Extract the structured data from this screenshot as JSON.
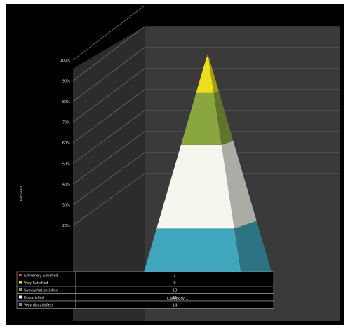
{
  "chart_data": {
    "type": "pyramid-3d-stacked-100",
    "ylabel": "Rab/Rata",
    "y_ticks": [
      "20%",
      "30%",
      "40%",
      "50%",
      "60%",
      "70%",
      "80%",
      "90%",
      "100%"
    ],
    "ylim": [
      0,
      100
    ],
    "categories": [
      "Category 1"
    ],
    "grid": true,
    "legend": "data-table",
    "series": [
      {
        "name": "Extremely Satisfied",
        "value": 1,
        "color": "#d9414b"
      },
      {
        "name": "Very Satisfied",
        "value": 9,
        "color": "#e9df1c"
      },
      {
        "name": "Somewhat satisfied",
        "value": 13,
        "color": "#8aa63e"
      },
      {
        "name": "Dissatisfied",
        "value": 21,
        "color": "#f6f6ef"
      },
      {
        "name": "Very dissatisfied",
        "value": 14,
        "color": "#3fa6bd"
      }
    ]
  }
}
